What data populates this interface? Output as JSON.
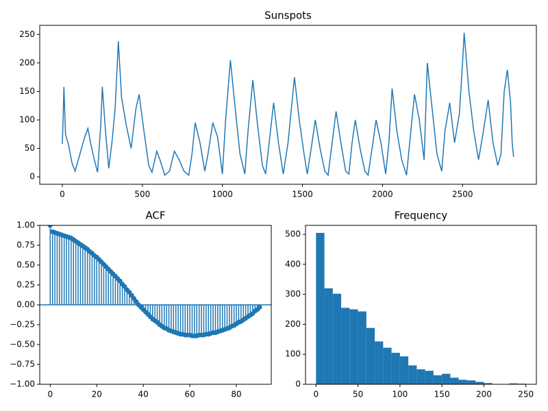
{
  "chart_data": [
    {
      "type": "line",
      "title": "Sunspots",
      "color": "#1f77b4",
      "x": [
        0,
        5,
        10,
        20,
        40,
        60,
        80,
        100,
        120,
        140,
        160,
        180,
        200,
        220,
        240,
        250,
        270,
        290,
        310,
        330,
        350,
        370,
        400,
        430,
        460,
        480,
        510,
        540,
        560,
        590,
        610,
        640,
        670,
        700,
        730,
        760,
        790,
        810,
        830,
        860,
        890,
        910,
        940,
        970,
        1000,
        1020,
        1050,
        1080,
        1110,
        1140,
        1160,
        1190,
        1220,
        1250,
        1270,
        1300,
        1320,
        1350,
        1380,
        1410,
        1450,
        1480,
        1510,
        1530,
        1560,
        1580,
        1610,
        1640,
        1660,
        1690,
        1710,
        1740,
        1770,
        1790,
        1810,
        1830,
        1860,
        1890,
        1910,
        1940,
        1960,
        1990,
        2020,
        2040,
        2060,
        2090,
        2120,
        2150,
        2170,
        2200,
        2230,
        2260,
        2280,
        2310,
        2340,
        2370,
        2390,
        2420,
        2450,
        2480,
        2500,
        2510,
        2540,
        2570,
        2600,
        2630,
        2660,
        2690,
        2720,
        2740,
        2760,
        2780,
        2800,
        2810,
        2819
      ],
      "values": [
        58,
        100,
        158,
        75,
        55,
        25,
        10,
        30,
        50,
        70,
        85,
        55,
        30,
        8,
        90,
        158,
        80,
        15,
        60,
        120,
        238,
        140,
        90,
        50,
        120,
        145,
        80,
        20,
        8,
        45,
        30,
        3,
        10,
        45,
        30,
        10,
        3,
        40,
        95,
        60,
        10,
        40,
        95,
        70,
        5,
        100,
        205,
        120,
        40,
        5,
        80,
        170,
        90,
        20,
        5,
        80,
        130,
        60,
        5,
        60,
        175,
        100,
        40,
        5,
        60,
        100,
        50,
        10,
        3,
        70,
        115,
        60,
        10,
        5,
        60,
        100,
        50,
        10,
        3,
        60,
        100,
        60,
        5,
        60,
        155,
        80,
        30,
        3,
        60,
        145,
        100,
        30,
        200,
        120,
        40,
        10,
        80,
        130,
        60,
        110,
        200,
        253,
        150,
        80,
        30,
        80,
        135,
        60,
        20,
        40,
        150,
        188,
        130,
        60,
        35
      ],
      "xlim": [
        -141,
        2961
      ],
      "ylim": [
        -13,
        266
      ],
      "xticks": [
        0,
        500,
        1000,
        1500,
        2000,
        2500
      ],
      "yticks": [
        0,
        50,
        100,
        150,
        200,
        250
      ]
    },
    {
      "type": "stem",
      "title": "ACF",
      "color": "#1f77b4",
      "x": [
        0,
        1,
        2,
        3,
        4,
        5,
        6,
        7,
        8,
        9,
        10,
        11,
        12,
        13,
        14,
        15,
        16,
        17,
        18,
        19,
        20,
        21,
        22,
        23,
        24,
        25,
        26,
        27,
        28,
        29,
        30,
        31,
        32,
        33,
        34,
        35,
        36,
        37,
        38,
        39,
        40,
        41,
        42,
        43,
        44,
        45,
        46,
        47,
        48,
        49,
        50,
        51,
        52,
        53,
        54,
        55,
        56,
        57,
        58,
        59,
        60,
        61,
        62,
        63,
        64,
        65,
        66,
        67,
        68,
        69,
        70,
        71,
        72,
        73,
        74,
        75,
        76,
        77,
        78,
        79,
        80,
        81,
        82,
        83,
        84,
        85,
        86,
        87,
        88,
        89,
        90
      ],
      "values": [
        1.0,
        0.92,
        0.91,
        0.9,
        0.89,
        0.88,
        0.87,
        0.86,
        0.85,
        0.84,
        0.82,
        0.8,
        0.78,
        0.76,
        0.74,
        0.72,
        0.7,
        0.67,
        0.65,
        0.62,
        0.6,
        0.57,
        0.54,
        0.51,
        0.48,
        0.45,
        0.42,
        0.39,
        0.36,
        0.33,
        0.3,
        0.26,
        0.23,
        0.19,
        0.16,
        0.12,
        0.08,
        0.04,
        0.0,
        -0.03,
        -0.06,
        -0.09,
        -0.12,
        -0.15,
        -0.18,
        -0.2,
        -0.22,
        -0.25,
        -0.27,
        -0.29,
        -0.3,
        -0.32,
        -0.33,
        -0.34,
        -0.35,
        -0.36,
        -0.37,
        -0.37,
        -0.38,
        -0.38,
        -0.38,
        -0.39,
        -0.39,
        -0.39,
        -0.38,
        -0.38,
        -0.38,
        -0.37,
        -0.37,
        -0.36,
        -0.35,
        -0.35,
        -0.34,
        -0.33,
        -0.32,
        -0.31,
        -0.3,
        -0.29,
        -0.27,
        -0.26,
        -0.24,
        -0.22,
        -0.21,
        -0.19,
        -0.17,
        -0.15,
        -0.13,
        -0.11,
        -0.08,
        -0.06,
        -0.03
      ],
      "xlim": [
        -4.5,
        95
      ],
      "ylim": [
        -1,
        1
      ],
      "xticks": [
        0,
        20,
        40,
        60,
        80
      ],
      "yticks": [
        {
          "value": -1,
          "label": "−1.00"
        },
        {
          "value": -0.75,
          "label": "−0.75"
        },
        {
          "value": -0.5,
          "label": "−0.50"
        },
        {
          "value": -0.25,
          "label": "−0.25"
        },
        {
          "value": 0,
          "label": "0.00"
        },
        {
          "value": 0.25,
          "label": "0.25"
        },
        {
          "value": 0.5,
          "label": "0.50"
        },
        {
          "value": 0.75,
          "label": "0.75"
        },
        {
          "value": 1,
          "label": "1.00"
        }
      ]
    },
    {
      "type": "histogram",
      "title": "Frequency",
      "color": "#1f77b4",
      "bins": [
        0,
        10,
        20,
        30,
        40,
        50,
        60,
        70,
        80,
        90,
        100,
        110,
        120,
        130,
        140,
        150,
        160,
        170,
        180,
        190,
        200,
        210,
        220,
        230,
        240,
        250
      ],
      "values": [
        505,
        320,
        302,
        255,
        250,
        243,
        188,
        143,
        122,
        105,
        93,
        63,
        50,
        45,
        30,
        35,
        22,
        15,
        13,
        8,
        4,
        0,
        0,
        3,
        2
      ],
      "xlim": [
        -12.5,
        262.5
      ],
      "ylim": [
        0,
        530
      ],
      "xticks": [
        0,
        50,
        100,
        150,
        200,
        250
      ],
      "yticks": [
        0,
        100,
        200,
        300,
        400,
        500
      ]
    }
  ]
}
